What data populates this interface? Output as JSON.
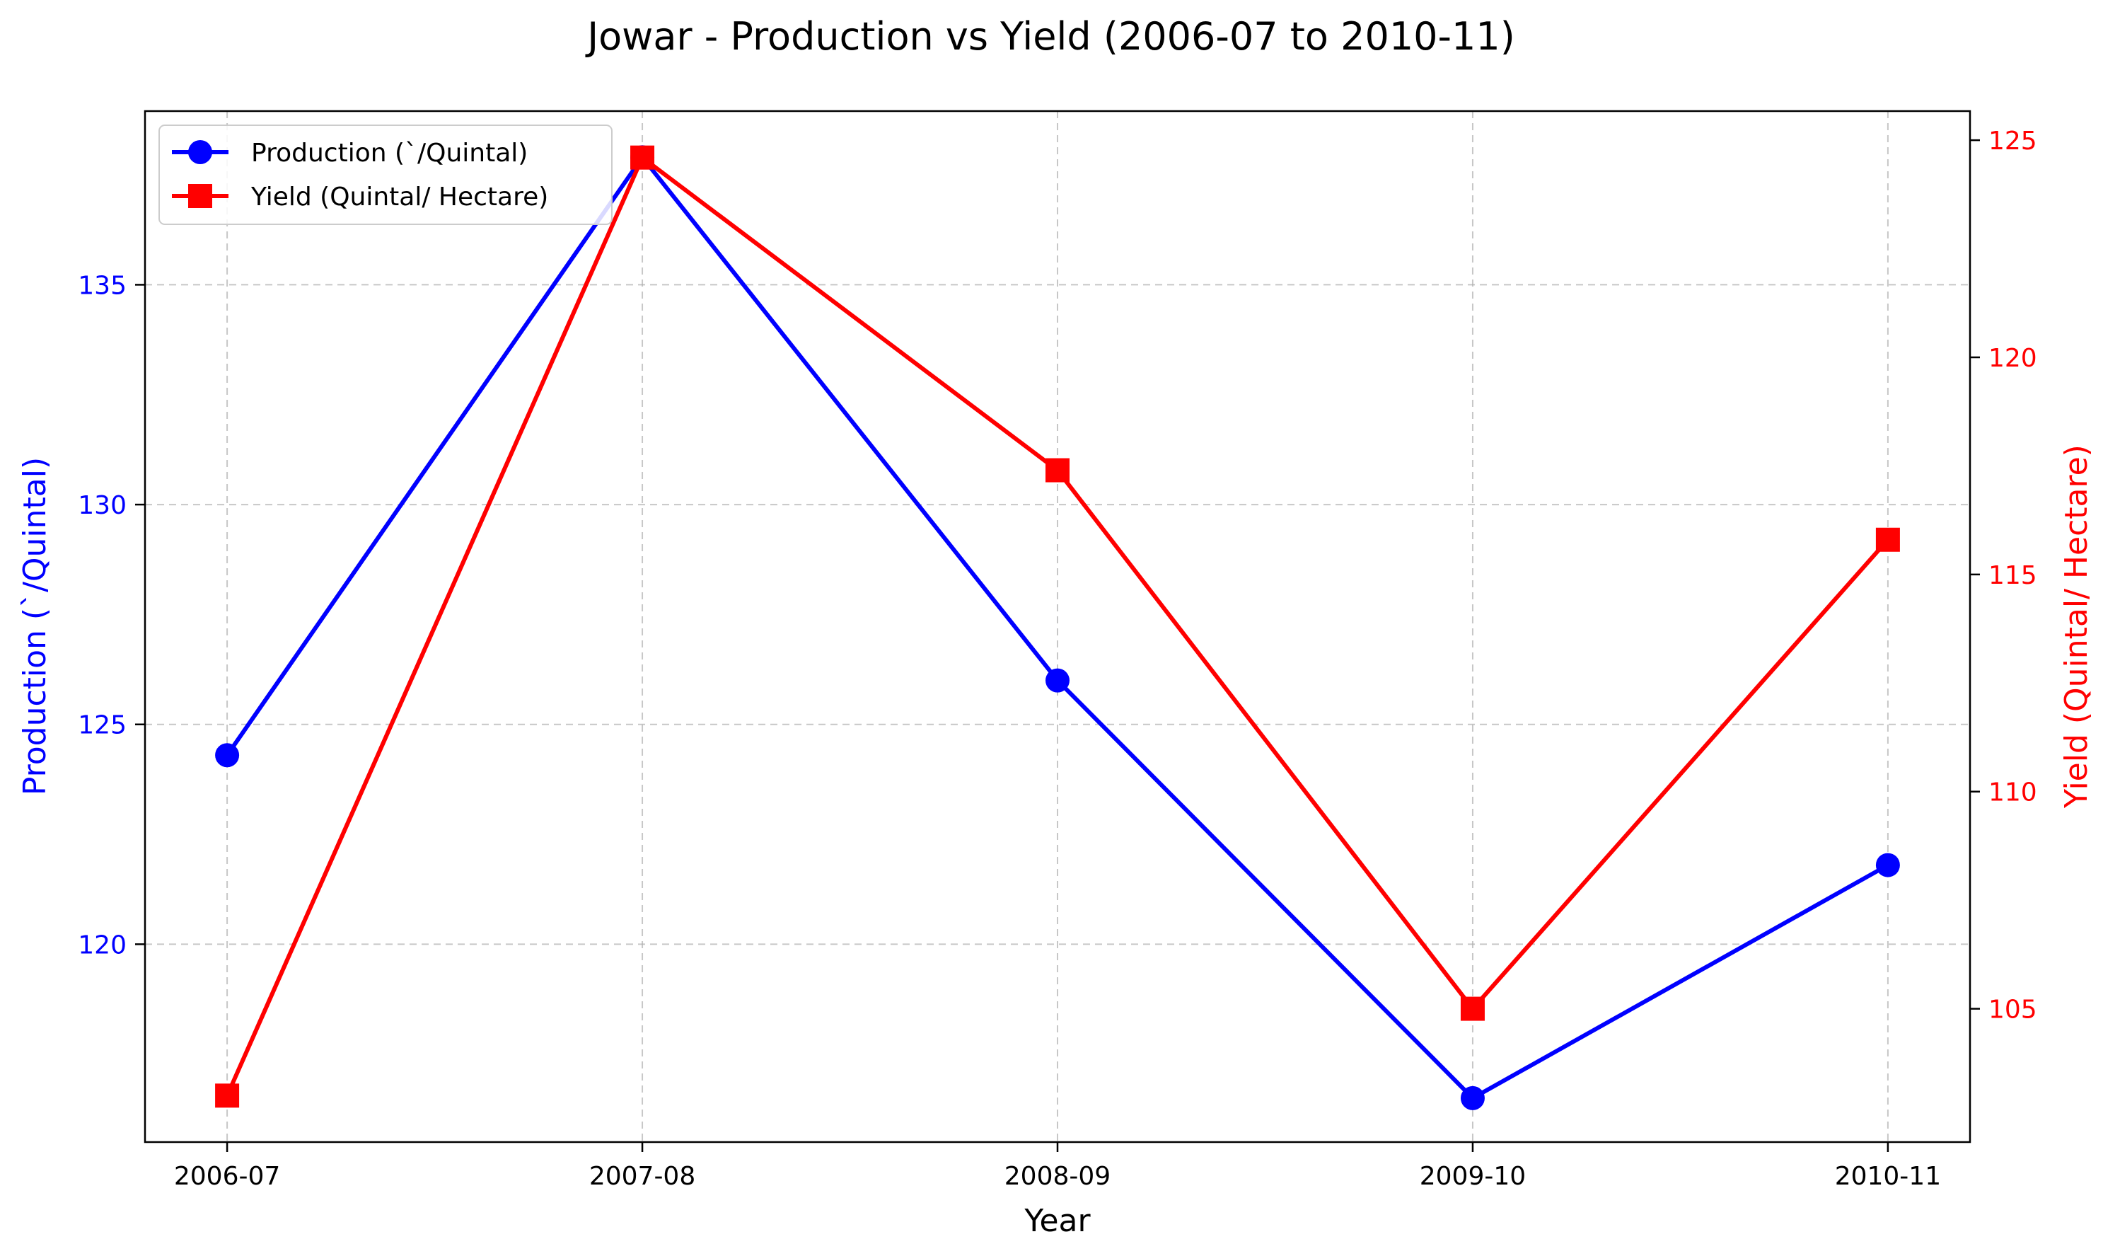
{
  "chart_data": {
    "type": "line",
    "title": "Jowar - Production vs Yield (2006-07 to 2010-11)",
    "xlabel": "Year",
    "categories": [
      "2006-07",
      "2007-08",
      "2008-09",
      "2009-10",
      "2010-11"
    ],
    "grid": true,
    "legend_position": "top-left",
    "y_left": {
      "label": "Production (`/Quintal)",
      "ylim": [
        115.5,
        138.95
      ],
      "ticks": [
        120,
        125,
        130,
        135
      ],
      "color": "#0000ff"
    },
    "y_right": {
      "label": "Yield (Quintal/ Hectare)",
      "ylim": [
        101.93,
        125.67
      ],
      "ticks": [
        105,
        110,
        115,
        120,
        125
      ],
      "color": "#ff0000"
    },
    "series": [
      {
        "name": "Production (`/Quintal)",
        "axis": "left",
        "color": "#0000ff",
        "marker": "circle",
        "values": [
          124.3,
          137.9,
          126.0,
          116.5,
          121.8
        ]
      },
      {
        "name": "Yield (Quintal/ Hectare)",
        "axis": "right",
        "color": "#ff0000",
        "marker": "square",
        "values": [
          103.0,
          124.6,
          117.4,
          105.0,
          115.8
        ]
      }
    ]
  }
}
